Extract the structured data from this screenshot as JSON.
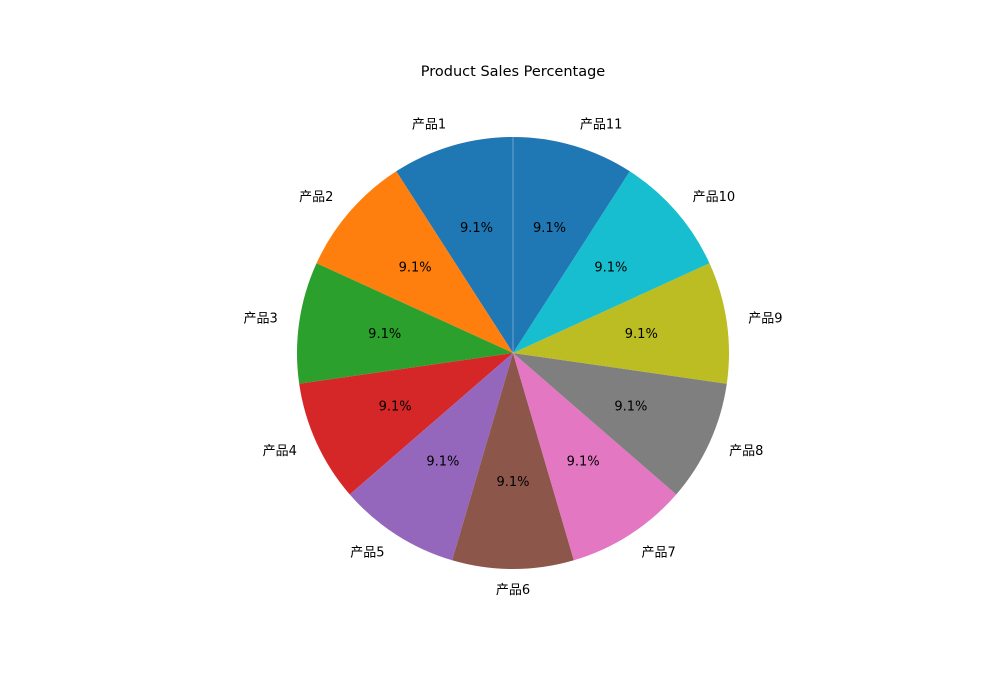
{
  "chart_data": {
    "type": "pie",
    "title": "Product Sales Percentage",
    "start_angle_deg": 90,
    "direction": "counterclockwise",
    "autopct_format": "{:.1f}%",
    "slices": [
      {
        "label": "产品1",
        "value": 9.1,
        "pct_label": "9.1%",
        "color": "#1f77b4"
      },
      {
        "label": "产品2",
        "value": 9.1,
        "pct_label": "9.1%",
        "color": "#ff7f0e"
      },
      {
        "label": "产品3",
        "value": 9.1,
        "pct_label": "9.1%",
        "color": "#2ca02c"
      },
      {
        "label": "产品4",
        "value": 9.1,
        "pct_label": "9.1%",
        "color": "#d62728"
      },
      {
        "label": "产品5",
        "value": 9.1,
        "pct_label": "9.1%",
        "color": "#9467bd"
      },
      {
        "label": "产品6",
        "value": 9.1,
        "pct_label": "9.1%",
        "color": "#8c564b"
      },
      {
        "label": "产品7",
        "value": 9.1,
        "pct_label": "9.1%",
        "color": "#e377c2"
      },
      {
        "label": "产品8",
        "value": 9.1,
        "pct_label": "9.1%",
        "color": "#7f7f7f"
      },
      {
        "label": "产品9",
        "value": 9.1,
        "pct_label": "9.1%",
        "color": "#bcbd22"
      },
      {
        "label": "产品10",
        "value": 9.1,
        "pct_label": "9.1%",
        "color": "#17becf"
      },
      {
        "label": "产品11",
        "value": 9.1,
        "pct_label": "9.1%",
        "color": "#1f77b4"
      }
    ]
  }
}
